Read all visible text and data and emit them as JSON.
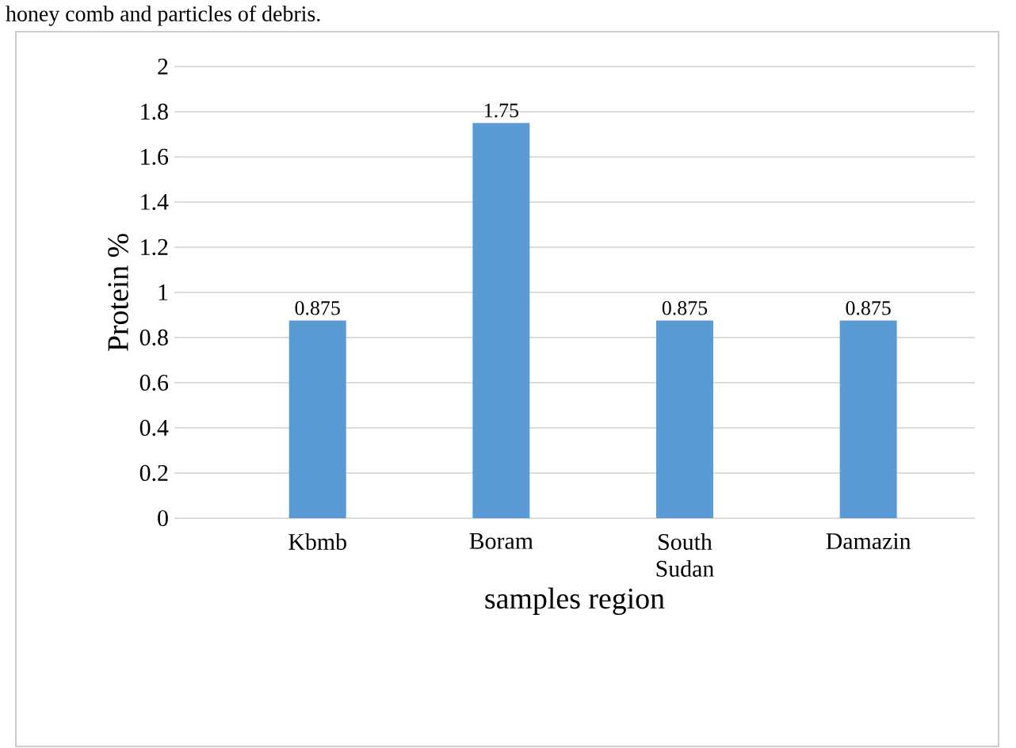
{
  "chart_data": {
    "type": "bar",
    "categories": [
      "Kbmb",
      "Boram",
      "South Sudan",
      "Damazin"
    ],
    "values": [
      0.875,
      1.75,
      0.875,
      0.875
    ],
    "value_labels": [
      "0.875",
      "1.75",
      "0.875",
      "0.875"
    ],
    "color": "#5b9bd5",
    "ylabel": "Protein %",
    "xlabel": "samples region",
    "ylim": [
      0,
      2
    ],
    "yticks": [
      0,
      0.2,
      0.4,
      0.6,
      0.8,
      1,
      1.2,
      1.4,
      1.6,
      1.8,
      2
    ],
    "grid": "y",
    "annotations": [
      "honey comb and particles of debris."
    ]
  }
}
